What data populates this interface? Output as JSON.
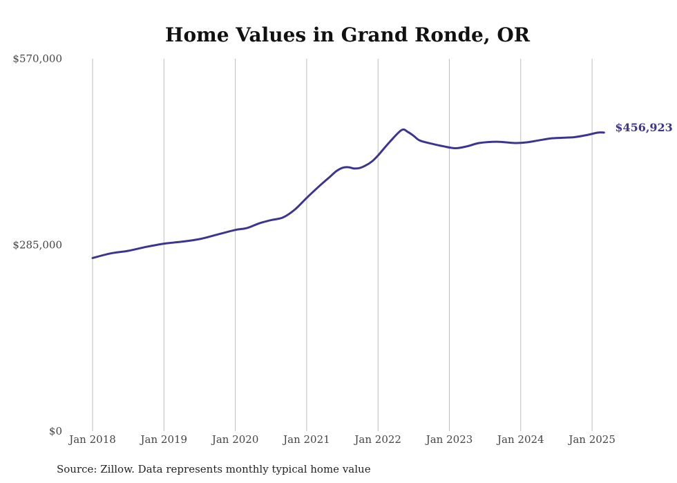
{
  "chart_data": {
    "type": "line",
    "title": "Home Values in Grand Ronde, OR",
    "source": "Source: Zillow. Data represents monthly typical home value",
    "xlabel": "",
    "ylabel": "",
    "ylim": [
      0,
      570000
    ],
    "y_ticks": [
      {
        "value": 0,
        "label": "$0"
      },
      {
        "value": 285000,
        "label": "$285,000"
      },
      {
        "value": 570000,
        "label": "$570,000"
      }
    ],
    "x_ticks": [
      {
        "value": "2018-01",
        "label": "Jan 2018"
      },
      {
        "value": "2019-01",
        "label": "Jan 2019"
      },
      {
        "value": "2020-01",
        "label": "Jan 2020"
      },
      {
        "value": "2021-01",
        "label": "Jan 2021"
      },
      {
        "value": "2022-01",
        "label": "Jan 2022"
      },
      {
        "value": "2023-01",
        "label": "Jan 2023"
      },
      {
        "value": "2024-01",
        "label": "Jan 2024"
      },
      {
        "value": "2025-01",
        "label": "Jan 2025"
      }
    ],
    "grid": {
      "vertical": true,
      "horizontal": false
    },
    "line_color": "#3b3590",
    "end_label": "$456,923",
    "series": [
      {
        "name": "",
        "x": [
          "2018-01",
          "2018-04",
          "2018-07",
          "2018-10",
          "2019-01",
          "2019-04",
          "2019-07",
          "2019-10",
          "2020-01",
          "2020-03",
          "2020-05",
          "2020-07",
          "2020-09",
          "2020-11",
          "2021-01",
          "2021-03",
          "2021-05",
          "2021-06",
          "2021-07",
          "2021-08",
          "2021-09",
          "2021-10",
          "2021-11",
          "2021-12",
          "2022-01",
          "2022-03",
          "2022-05",
          "2022-06",
          "2022-07",
          "2022-08",
          "2022-10",
          "2022-12",
          "2023-02",
          "2023-04",
          "2023-06",
          "2023-09",
          "2023-12",
          "2024-02",
          "2024-04",
          "2024-06",
          "2024-08",
          "2024-10",
          "2024-12",
          "2025-02",
          "2025-03"
        ],
        "values": [
          265000,
          272000,
          276000,
          282000,
          287000,
          290000,
          294000,
          301000,
          308000,
          311000,
          318000,
          323000,
          327000,
          339000,
          357000,
          374000,
          390000,
          398000,
          403000,
          404000,
          402000,
          403000,
          407000,
          413000,
          422000,
          443000,
          461000,
          458000,
          452000,
          445000,
          440000,
          436000,
          433000,
          436000,
          441000,
          443000,
          441000,
          442000,
          445000,
          448000,
          449000,
          450000,
          453000,
          457000,
          456923
        ]
      }
    ]
  }
}
